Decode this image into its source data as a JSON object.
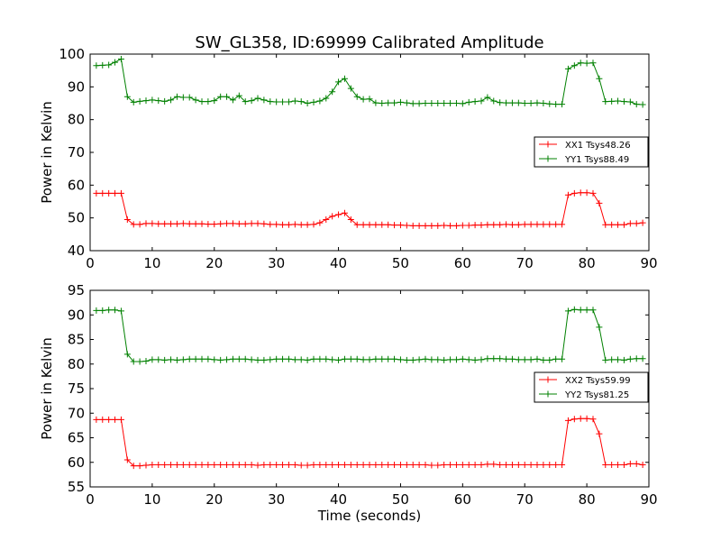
{
  "title": "SW_GL358, ID:69999 Calibrated Amplitude",
  "colors": {
    "xx": "#ff0000",
    "yy": "#008000"
  },
  "chart_data": [
    {
      "type": "line",
      "xlabel": "",
      "ylabel": "Power in Kelvin",
      "xlim": [
        0,
        90
      ],
      "ylim": [
        40,
        100
      ],
      "xticks": [
        "0",
        "10",
        "20",
        "30",
        "40",
        "50",
        "60",
        "70",
        "80",
        "90"
      ],
      "yticks": [
        "40",
        "50",
        "60",
        "70",
        "80",
        "90",
        "100"
      ],
      "legend_placement": "center-right",
      "series": [
        {
          "name": "XX1 Tsys48.26",
          "color": "#ff0000",
          "x": [
            1,
            2,
            3,
            4,
            5,
            6,
            7,
            8,
            9,
            10,
            11,
            12,
            13,
            14,
            15,
            16,
            17,
            18,
            19,
            20,
            21,
            22,
            23,
            24,
            25,
            26,
            27,
            28,
            29,
            30,
            31,
            32,
            33,
            34,
            35,
            36,
            37,
            38,
            39,
            40,
            41,
            42,
            43,
            44,
            45,
            46,
            47,
            48,
            49,
            50,
            51,
            52,
            53,
            54,
            55,
            56,
            57,
            58,
            59,
            60,
            61,
            62,
            63,
            64,
            65,
            66,
            67,
            68,
            69,
            70,
            71,
            72,
            73,
            74,
            75,
            76,
            77,
            78,
            79,
            80,
            81,
            82,
            83,
            84,
            85,
            86,
            87,
            88,
            89
          ],
          "y": [
            57.5,
            57.5,
            57.5,
            57.5,
            57.5,
            49.5,
            48.0,
            48.0,
            48.3,
            48.3,
            48.2,
            48.2,
            48.2,
            48.2,
            48.3,
            48.2,
            48.2,
            48.2,
            48.1,
            48.1,
            48.2,
            48.3,
            48.3,
            48.2,
            48.2,
            48.3,
            48.3,
            48.2,
            48.0,
            48.0,
            47.9,
            47.9,
            48.0,
            47.9,
            47.9,
            48.0,
            48.5,
            49.5,
            50.5,
            51.0,
            51.5,
            49.5,
            47.9,
            47.9,
            47.9,
            47.9,
            47.9,
            47.9,
            47.8,
            47.8,
            47.7,
            47.6,
            47.6,
            47.6,
            47.6,
            47.6,
            47.7,
            47.6,
            47.6,
            47.7,
            47.7,
            47.8,
            47.8,
            47.9,
            47.9,
            47.9,
            48.0,
            47.9,
            47.9,
            48.0,
            48.0,
            48.0,
            48.0,
            48.0,
            48.0,
            48.0,
            57.0,
            57.5,
            57.7,
            57.7,
            57.5,
            54.5,
            47.9,
            47.9,
            47.9,
            47.9,
            48.3,
            48.3,
            48.5
          ]
        },
        {
          "name": "YY1 Tsys88.49",
          "color": "#008000",
          "x": [
            1,
            2,
            3,
            4,
            5,
            6,
            7,
            8,
            9,
            10,
            11,
            12,
            13,
            14,
            15,
            16,
            17,
            18,
            19,
            20,
            21,
            22,
            23,
            24,
            25,
            26,
            27,
            28,
            29,
            30,
            31,
            32,
            33,
            34,
            35,
            36,
            37,
            38,
            39,
            40,
            41,
            42,
            43,
            44,
            45,
            46,
            47,
            48,
            49,
            50,
            51,
            52,
            53,
            54,
            55,
            56,
            57,
            58,
            59,
            60,
            61,
            62,
            63,
            64,
            65,
            66,
            67,
            68,
            69,
            70,
            71,
            72,
            73,
            74,
            75,
            76,
            77,
            78,
            79,
            80,
            81,
            82,
            83,
            84,
            85,
            86,
            87,
            88,
            89
          ],
          "y": [
            96.5,
            96.6,
            96.7,
            97.5,
            98.5,
            87.0,
            85.3,
            85.6,
            85.8,
            86.0,
            85.8,
            85.6,
            86.0,
            87.0,
            86.8,
            86.8,
            86.0,
            85.5,
            85.5,
            85.8,
            87.0,
            87.0,
            86.0,
            87.3,
            85.5,
            85.8,
            86.5,
            86.0,
            85.5,
            85.4,
            85.4,
            85.4,
            85.7,
            85.5,
            85.0,
            85.3,
            85.7,
            86.5,
            88.5,
            91.5,
            92.5,
            89.5,
            87.0,
            86.2,
            86.3,
            85.1,
            85.0,
            85.1,
            85.1,
            85.3,
            85.1,
            84.9,
            84.9,
            85.0,
            85.0,
            85.0,
            85.0,
            85.0,
            85.0,
            84.9,
            85.3,
            85.5,
            85.7,
            86.8,
            85.7,
            85.2,
            85.1,
            85.1,
            85.1,
            85.0,
            85.0,
            85.1,
            85.0,
            84.8,
            84.7,
            84.7,
            95.5,
            96.5,
            97.3,
            97.2,
            97.3,
            92.5,
            85.5,
            85.6,
            85.7,
            85.5,
            85.4,
            84.7,
            84.6
          ]
        }
      ]
    },
    {
      "type": "line",
      "xlabel": "Time (seconds)",
      "ylabel": "Power in Kelvin",
      "xlim": [
        0,
        90
      ],
      "ylim": [
        55,
        95
      ],
      "xticks": [
        "0",
        "10",
        "20",
        "30",
        "40",
        "50",
        "60",
        "70",
        "80",
        "90"
      ],
      "yticks": [
        "55",
        "60",
        "65",
        "70",
        "75",
        "80",
        "85",
        "90",
        "95"
      ],
      "legend_placement": "center-right",
      "series": [
        {
          "name": "XX2 Tsys59.99",
          "color": "#ff0000",
          "x": [
            1,
            2,
            3,
            4,
            5,
            6,
            7,
            8,
            9,
            10,
            11,
            12,
            13,
            14,
            15,
            16,
            17,
            18,
            19,
            20,
            21,
            22,
            23,
            24,
            25,
            26,
            27,
            28,
            29,
            30,
            31,
            32,
            33,
            34,
            35,
            36,
            37,
            38,
            39,
            40,
            41,
            42,
            43,
            44,
            45,
            46,
            47,
            48,
            49,
            50,
            51,
            52,
            53,
            54,
            55,
            56,
            57,
            58,
            59,
            60,
            61,
            62,
            63,
            64,
            65,
            66,
            67,
            68,
            69,
            70,
            71,
            72,
            73,
            74,
            75,
            76,
            77,
            78,
            79,
            80,
            81,
            82,
            83,
            84,
            85,
            86,
            87,
            88,
            89
          ],
          "y": [
            68.7,
            68.7,
            68.7,
            68.7,
            68.7,
            60.5,
            59.3,
            59.3,
            59.4,
            59.5,
            59.5,
            59.5,
            59.5,
            59.5,
            59.5,
            59.5,
            59.5,
            59.5,
            59.5,
            59.5,
            59.5,
            59.5,
            59.5,
            59.5,
            59.5,
            59.5,
            59.4,
            59.5,
            59.5,
            59.5,
            59.5,
            59.5,
            59.5,
            59.4,
            59.4,
            59.5,
            59.5,
            59.5,
            59.5,
            59.5,
            59.5,
            59.5,
            59.5,
            59.5,
            59.5,
            59.5,
            59.5,
            59.5,
            59.5,
            59.5,
            59.5,
            59.5,
            59.5,
            59.5,
            59.4,
            59.4,
            59.5,
            59.5,
            59.5,
            59.5,
            59.5,
            59.5,
            59.5,
            59.6,
            59.6,
            59.5,
            59.5,
            59.5,
            59.5,
            59.5,
            59.5,
            59.5,
            59.5,
            59.5,
            59.5,
            59.5,
            68.5,
            68.8,
            68.9,
            68.9,
            68.8,
            65.8,
            59.5,
            59.5,
            59.5,
            59.5,
            59.7,
            59.7,
            59.5
          ]
        },
        {
          "name": "YY2 Tsys81.25",
          "color": "#008000",
          "x": [
            1,
            2,
            3,
            4,
            5,
            6,
            7,
            8,
            9,
            10,
            11,
            12,
            13,
            14,
            15,
            16,
            17,
            18,
            19,
            20,
            21,
            22,
            23,
            24,
            25,
            26,
            27,
            28,
            29,
            30,
            31,
            32,
            33,
            34,
            35,
            36,
            37,
            38,
            39,
            40,
            41,
            42,
            43,
            44,
            45,
            46,
            47,
            48,
            49,
            50,
            51,
            52,
            53,
            54,
            55,
            56,
            57,
            58,
            59,
            60,
            61,
            62,
            63,
            64,
            65,
            66,
            67,
            68,
            69,
            70,
            71,
            72,
            73,
            74,
            75,
            76,
            77,
            78,
            79,
            80,
            81,
            82,
            83,
            84,
            85,
            86,
            87,
            88,
            89
          ],
          "y": [
            90.9,
            90.9,
            91.0,
            91.0,
            90.8,
            82.0,
            80.5,
            80.5,
            80.6,
            80.9,
            80.9,
            80.8,
            80.9,
            80.8,
            80.9,
            81.0,
            81.0,
            81.0,
            81.0,
            80.9,
            80.8,
            80.9,
            81.0,
            81.0,
            81.0,
            80.9,
            80.8,
            80.8,
            80.9,
            81.0,
            81.0,
            81.0,
            80.9,
            80.9,
            80.8,
            81.0,
            81.0,
            81.0,
            80.9,
            80.8,
            81.0,
            81.0,
            81.0,
            80.9,
            80.9,
            81.0,
            81.0,
            81.0,
            81.0,
            80.9,
            80.8,
            80.8,
            80.9,
            81.0,
            80.9,
            80.9,
            80.8,
            80.9,
            80.9,
            81.0,
            80.9,
            80.8,
            80.9,
            81.1,
            81.1,
            81.1,
            81.0,
            81.0,
            80.9,
            80.9,
            80.9,
            81.0,
            80.8,
            80.8,
            81.0,
            81.0,
            90.8,
            91.1,
            91.0,
            91.0,
            91.0,
            87.5,
            80.8,
            80.9,
            80.9,
            80.8,
            81.0,
            81.1,
            81.1
          ]
        }
      ]
    }
  ]
}
